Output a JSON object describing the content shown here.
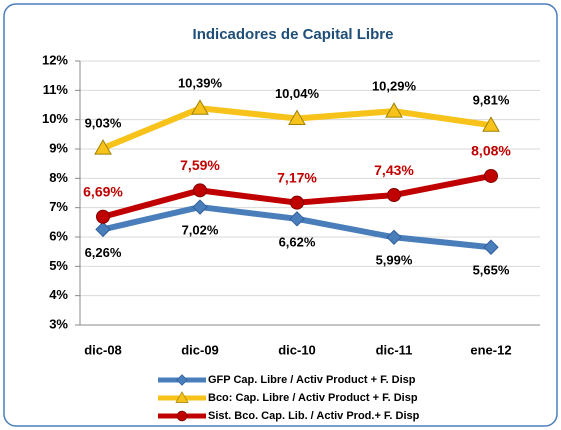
{
  "chart_data": {
    "type": "line",
    "title": "Indicadores de Capital Libre",
    "categories": [
      "dic-08",
      "dic-09",
      "dic-10",
      "dic-11",
      "ene-12"
    ],
    "ylim": [
      3,
      12
    ],
    "yticks": [
      {
        "value": 3,
        "label": "3%"
      },
      {
        "value": 4,
        "label": "4%"
      },
      {
        "value": 5,
        "label": "5%"
      },
      {
        "value": 6,
        "label": "6%"
      },
      {
        "value": 7,
        "label": "7%"
      },
      {
        "value": 8,
        "label": "8%"
      },
      {
        "value": 9,
        "label": "9%"
      },
      {
        "value": 10,
        "label": "10%"
      },
      {
        "value": 11,
        "label": "11%"
      },
      {
        "value": 12,
        "label": "12%"
      }
    ],
    "grid": true,
    "legend": "bottom",
    "series": [
      {
        "name": "GFP Cap. Libre / Activ Product + F. Disp",
        "color": "#4a7ebb",
        "marker": "diamond",
        "label_position": "below",
        "label_color": "#000000",
        "values": [
          6.26,
          7.02,
          6.62,
          5.99,
          5.65
        ],
        "value_labels": [
          "6,26%",
          "7,02%",
          "6,62%",
          "5,99%",
          "5,65%"
        ]
      },
      {
        "name": "Bco: Cap. Libre / Activ Product + F. Disp",
        "color": "#f7c31b",
        "marker": "triangle",
        "label_position": "above",
        "label_color": "#000000",
        "values": [
          9.03,
          10.39,
          10.04,
          10.29,
          9.81
        ],
        "value_labels": [
          "9,03%",
          "10,39%",
          "10,04%",
          "10,29%",
          "9,81%"
        ]
      },
      {
        "name": "Sist. Bco. Cap. Lib. / Activ Prod.+ F. Disp",
        "color": "#c00000",
        "marker": "circle",
        "label_position": "above",
        "label_color": "#c00000",
        "values": [
          6.69,
          7.59,
          7.17,
          7.43,
          8.08
        ],
        "value_labels": [
          "6,69%",
          "7,59%",
          "7,17%",
          "7,43%",
          "8,08%"
        ]
      }
    ]
  }
}
